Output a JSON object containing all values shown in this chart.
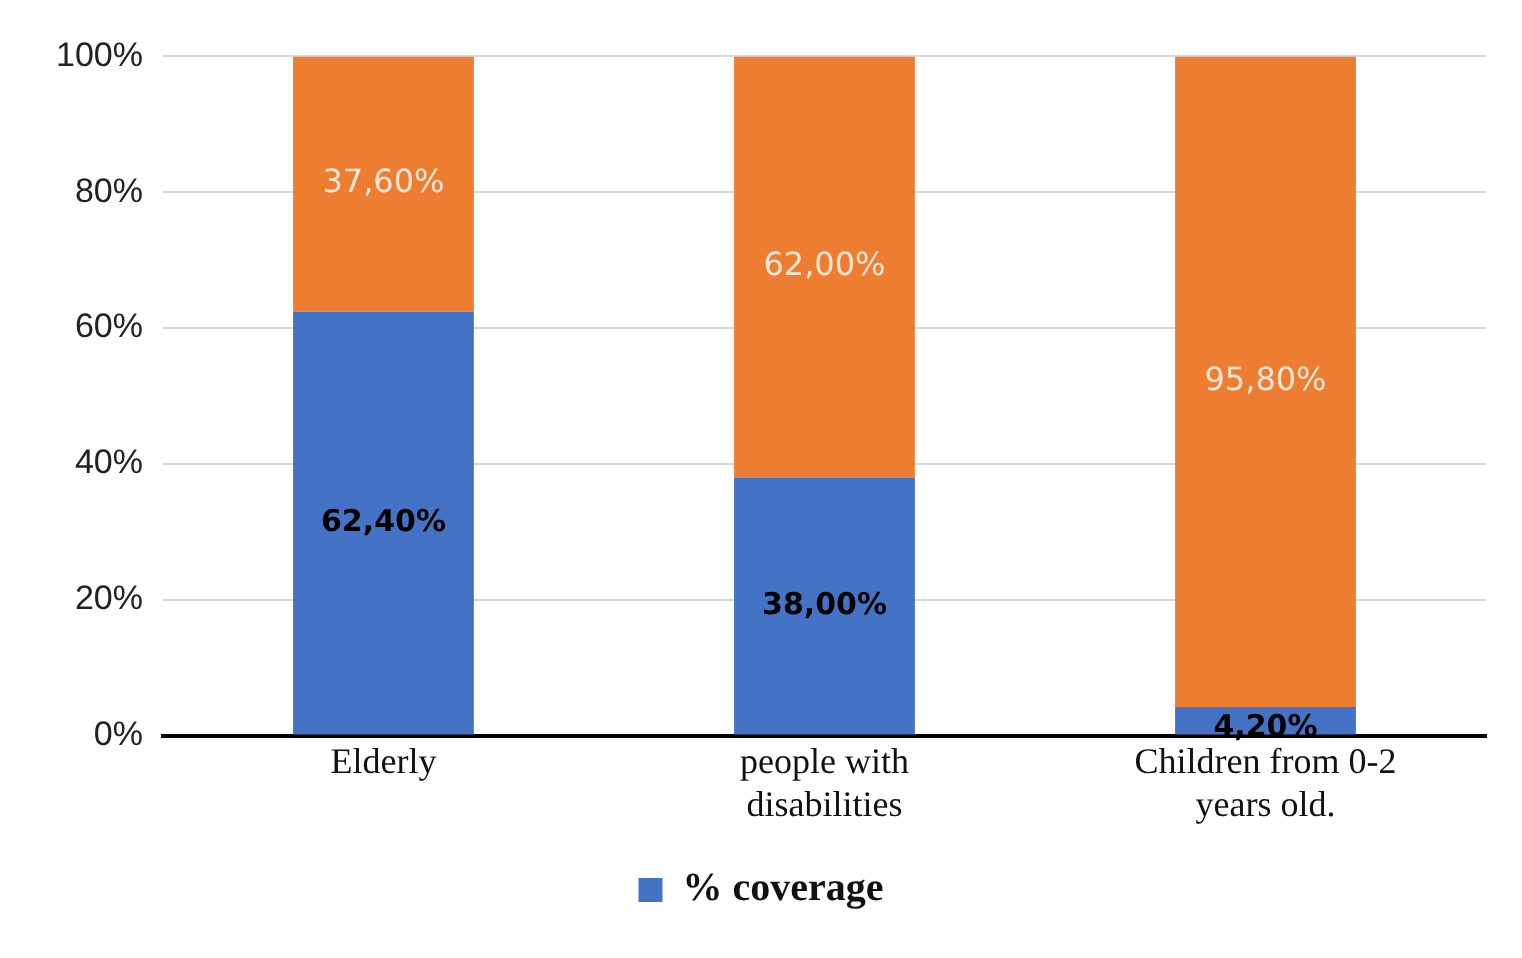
{
  "chart_data": {
    "type": "bar",
    "stacked": true,
    "categories": [
      "Elderly",
      "people with disabilities",
      "Children from 0-2 years old."
    ],
    "series": [
      {
        "name": "% coverage",
        "color": "#4472c4",
        "values": [
          62.4,
          38.0,
          4.2
        ],
        "value_labels": [
          "62,40%",
          "38,00%",
          "4,20%"
        ]
      },
      {
        "color": "#ed7d31",
        "values": [
          37.6,
          62.0,
          95.8
        ],
        "value_labels": [
          "37,60%",
          "62,00%",
          "95,80%"
        ]
      }
    ],
    "ylim": [
      0,
      100
    ],
    "yticks": [
      {
        "value": 0,
        "label": "0%"
      },
      {
        "value": 20,
        "label": "20%"
      },
      {
        "value": 40,
        "label": "40%"
      },
      {
        "value": 60,
        "label": "60%"
      },
      {
        "value": 80,
        "label": "80%"
      },
      {
        "value": 100,
        "label": "100%"
      }
    ],
    "grid": "y",
    "legend": "bottom"
  }
}
